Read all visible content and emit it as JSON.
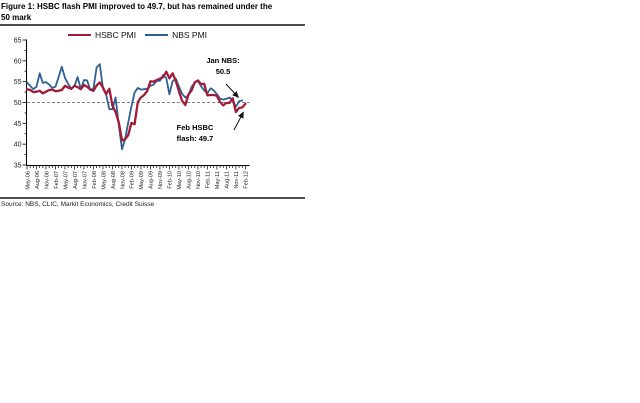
{
  "figure": {
    "title_line1": "Figure 1: HSBC flash PMI improved to 49.7, but has remained under the",
    "title_line2": "50 mark",
    "source": "Source: NBS, CLIC, Markit Economics, Credit Suisse"
  },
  "chart_data": {
    "type": "line",
    "title": "Figure 1: HSBC flash PMI improved to 49.7, but has remained under the 50 mark",
    "xlabel": "",
    "ylabel": "",
    "ylim": [
      35,
      65
    ],
    "y_ticks": [
      35,
      40,
      45,
      50,
      55,
      60,
      65
    ],
    "x_start": "May-06",
    "x_end": "Feb-12",
    "x_frequency": "monthly",
    "x_tick_labels": [
      "May-06",
      "Aug-06",
      "Nov-06",
      "Feb-07",
      "May-07",
      "Aug-07",
      "Nov-07",
      "Feb-08",
      "May-08",
      "Aug-08",
      "Nov-08",
      "Feb-09",
      "May-09",
      "Aug-09",
      "Nov-09",
      "Feb-10",
      "May-10",
      "Aug-10",
      "Nov-10",
      "Feb-11",
      "May-11",
      "Aug-11",
      "Nov-11",
      "Feb-12"
    ],
    "grid": false,
    "legend_position": "top",
    "reference_line": {
      "value": 50,
      "style": "dashed",
      "color": "#808080"
    },
    "series": [
      {
        "name": "HSBC PMI",
        "color": "#a21c38",
        "values": [
          53.2,
          53.0,
          52.5,
          52.6,
          52.8,
          52.2,
          52.6,
          53.0,
          53.1,
          52.7,
          52.8,
          53.0,
          54.0,
          53.6,
          53.3,
          54.0,
          53.7,
          53.2,
          54.2,
          53.8,
          53.1,
          52.8,
          54.1,
          54.8,
          53.6,
          52.0,
          53.3,
          49.2,
          47.7,
          45.2,
          40.9,
          41.2,
          42.2,
          45.1,
          44.8,
          50.1,
          51.2,
          51.8,
          52.8,
          55.1,
          55.0,
          55.4,
          55.7,
          56.1,
          57.4,
          55.8,
          57.0,
          55.2,
          52.7,
          50.4,
          49.4,
          51.9,
          52.9,
          54.8,
          55.3,
          54.4,
          54.5,
          51.7,
          51.8,
          51.8,
          51.6,
          50.1,
          49.3,
          49.9,
          49.9,
          51.0,
          47.7,
          48.7,
          48.8,
          49.7
        ]
      },
      {
        "name": "NBS PMI",
        "color": "#2e6094",
        "values": [
          54.8,
          54.0,
          53.2,
          53.8,
          57.0,
          54.7,
          54.9,
          54.3,
          53.5,
          53.8,
          56.1,
          58.6,
          55.9,
          54.5,
          53.3,
          54.0,
          56.1,
          53.2,
          55.4,
          55.3,
          53.0,
          53.4,
          58.4,
          59.2,
          53.3,
          52.0,
          48.4,
          48.4,
          51.2,
          44.6,
          38.8,
          41.2,
          45.3,
          49.0,
          52.4,
          53.5,
          53.1,
          53.2,
          53.3,
          54.0,
          54.3,
          55.2,
          55.2,
          56.6,
          55.8,
          52.0,
          55.1,
          55.7,
          53.9,
          52.1,
          51.2,
          51.7,
          53.8,
          54.7,
          55.2,
          53.9,
          52.9,
          52.2,
          53.4,
          52.9,
          52.0,
          50.9,
          50.7,
          50.9,
          51.2,
          50.4,
          49.0,
          50.3,
          50.5
        ]
      }
    ],
    "annotations": [
      {
        "line1": "Jan NBS:",
        "line2": "50.5",
        "points_to": "NBS PMI, Jan-12"
      },
      {
        "line1": "Feb HSBC",
        "line2": "flash: 49.7",
        "points_to": "HSBC PMI, Feb-12"
      }
    ]
  }
}
